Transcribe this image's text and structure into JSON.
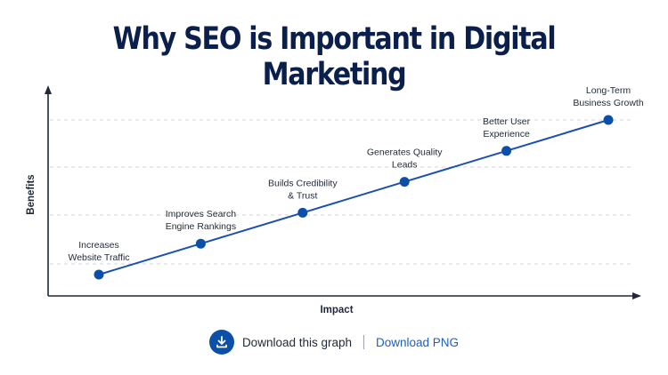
{
  "title": "Why SEO is Important in Digital Marketing",
  "chart_data": {
    "type": "line",
    "xlabel": "Impact",
    "ylabel": "Benefits",
    "grid": "horizontal-dashed",
    "series": [
      {
        "points": [
          {
            "label": "Increases\nWebsite Traffic",
            "x": 1,
            "y": 1
          },
          {
            "label": "Improves Search\nEngine Rankings",
            "x": 2,
            "y": 2
          },
          {
            "label": "Builds Credibility\n& Trust",
            "x": 3,
            "y": 3
          },
          {
            "label": "Generates Quality\nLeads",
            "x": 4,
            "y": 4
          },
          {
            "label": "Better User\nExperience",
            "x": 5,
            "y": 5
          },
          {
            "label": "Long-Term\nBusiness Growth",
            "x": 6,
            "y": 6
          }
        ]
      }
    ]
  },
  "colors": {
    "title": "#0b1f4d",
    "line": "#1a4fb5",
    "point": "#0b4fa8",
    "axis": "#1f2937",
    "grid": "#d1d5db",
    "link": "#1d5fc4"
  },
  "footer": {
    "download_icon": "download-icon",
    "download_text": "Download this graph",
    "separator": "|",
    "download_png": "Download PNG"
  }
}
